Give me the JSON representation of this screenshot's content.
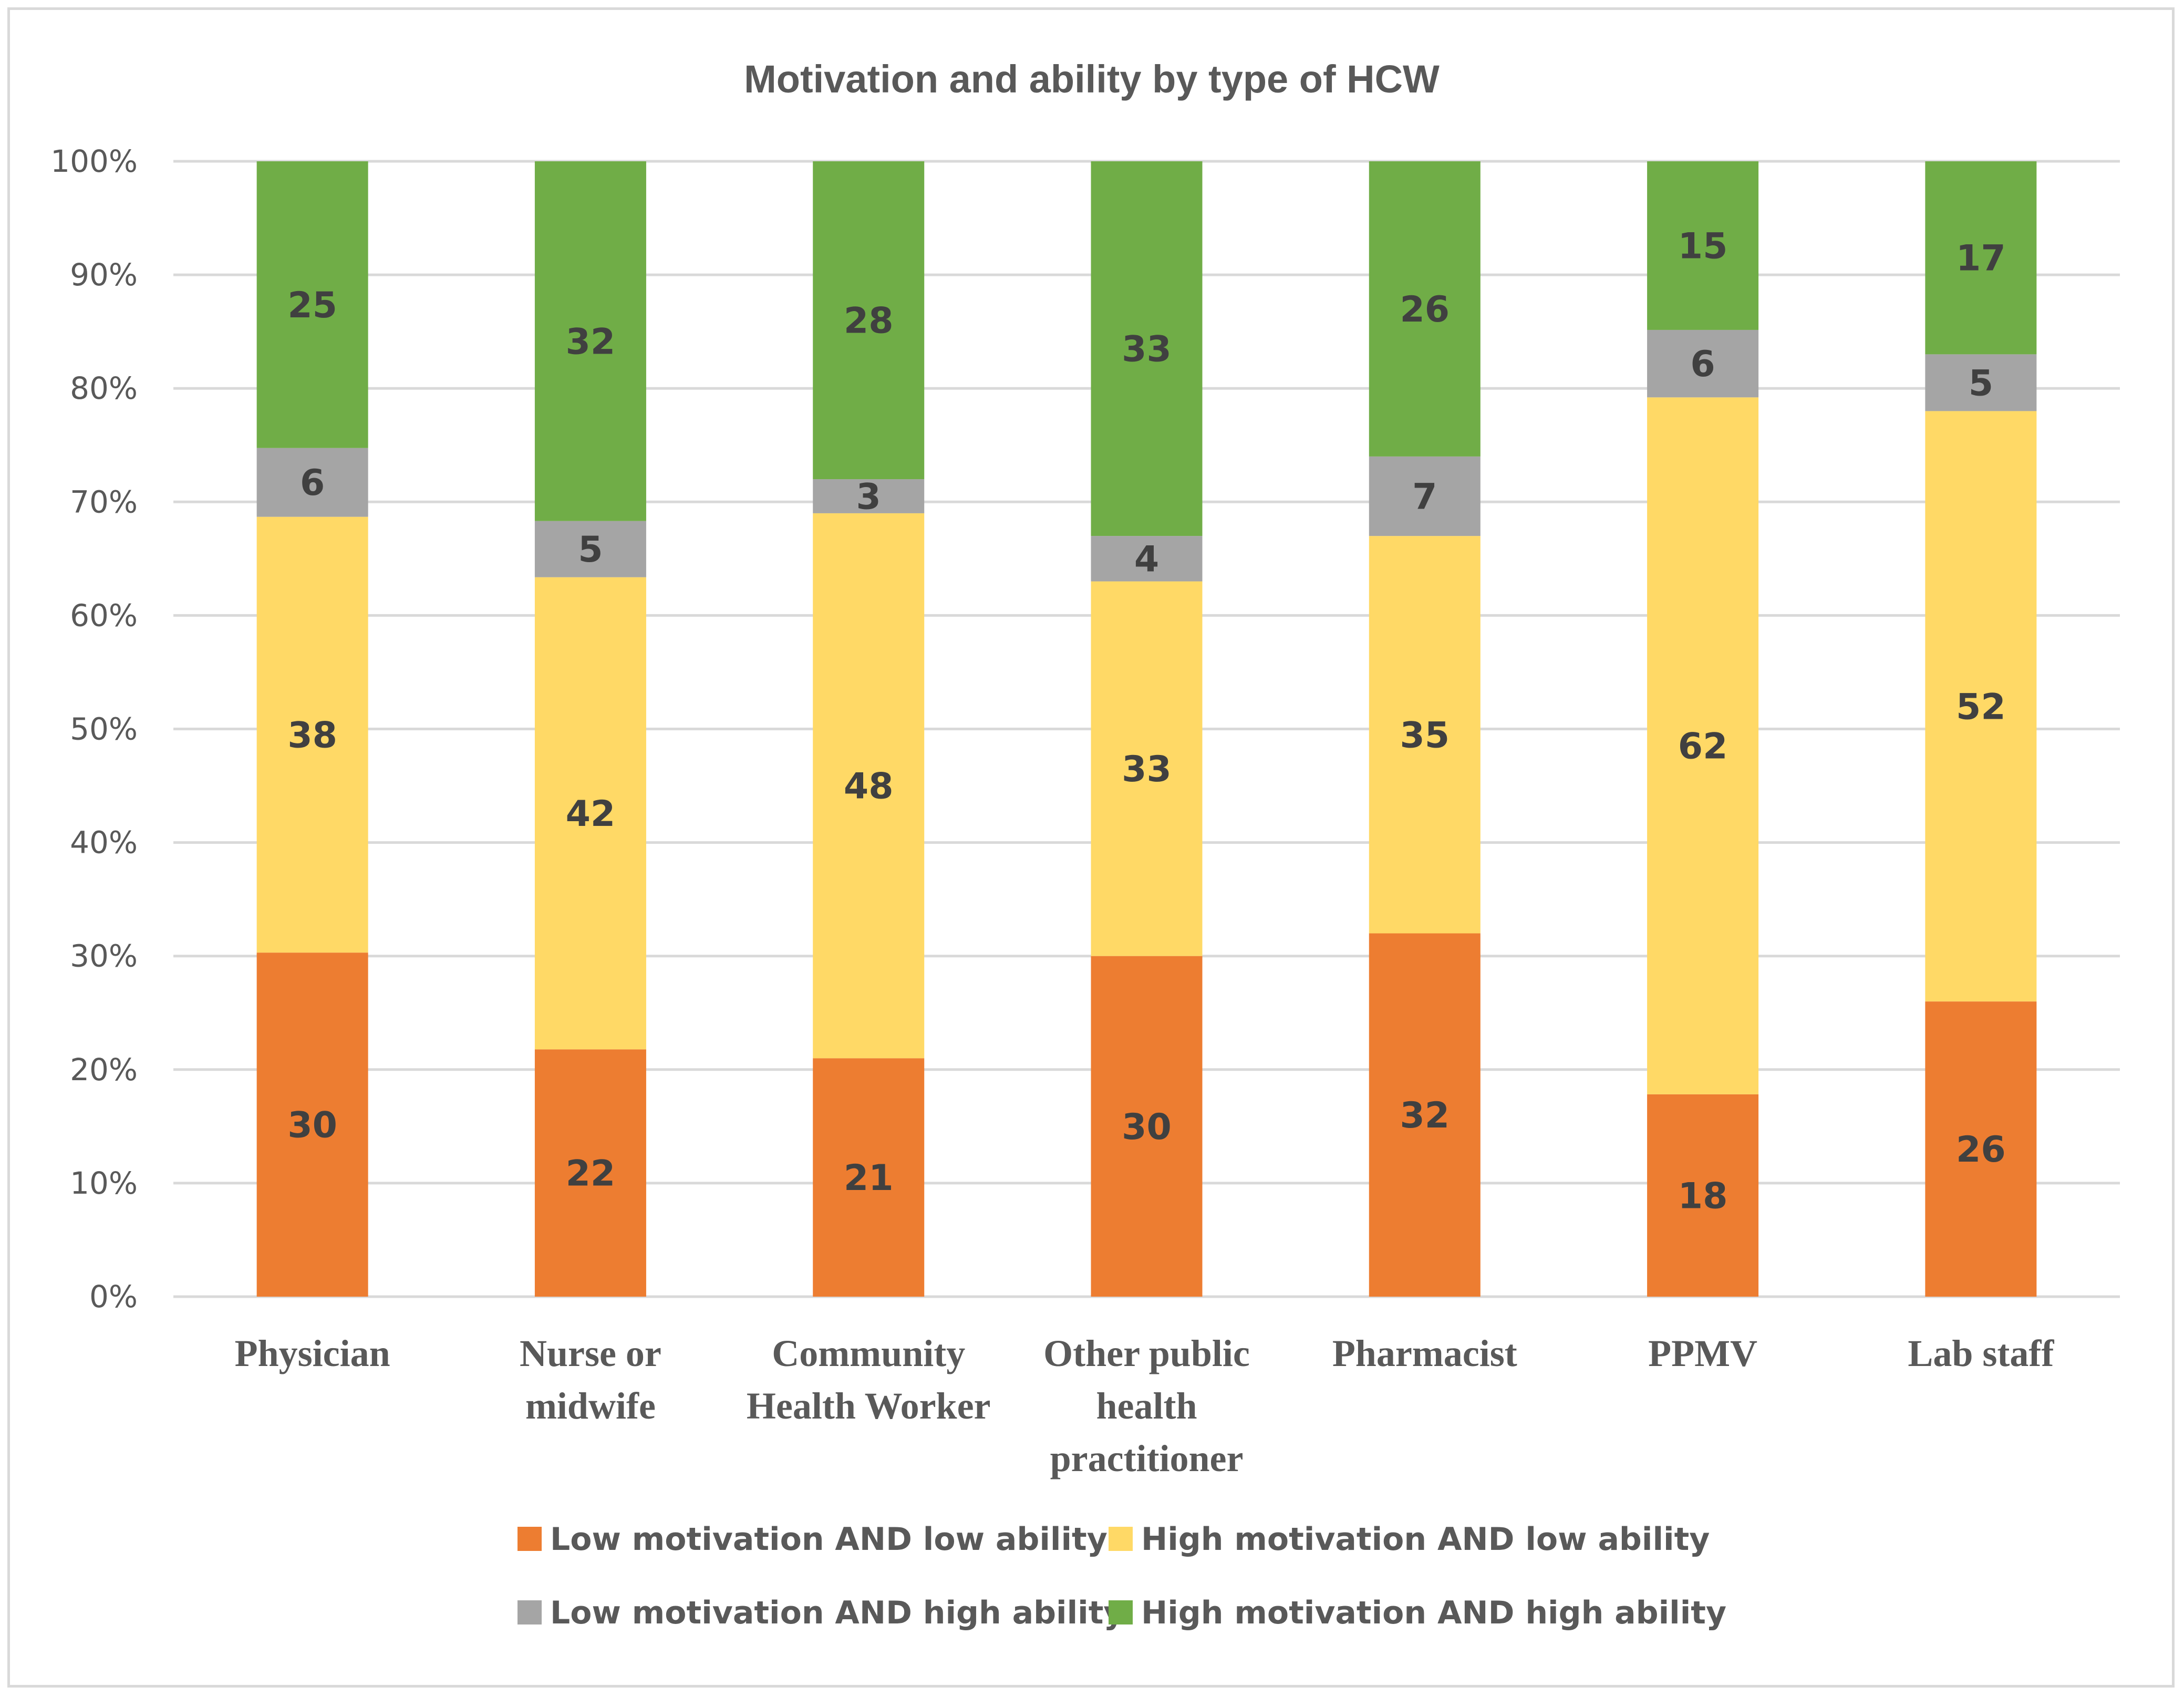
{
  "chart_data": {
    "type": "bar",
    "stacked": true,
    "percent_stacked": true,
    "title": "Motivation and ability by type of HCW",
    "xlabel": "",
    "ylabel": "",
    "ylim": [
      0,
      100
    ],
    "y_ticks": [
      "0%",
      "10%",
      "20%",
      "30%",
      "40%",
      "50%",
      "60%",
      "70%",
      "80%",
      "90%",
      "100%"
    ],
    "grid": true,
    "legend_position": "bottom",
    "categories": [
      [
        "Physician"
      ],
      [
        "Nurse or",
        "midwife"
      ],
      [
        "Community",
        "Health Worker"
      ],
      [
        "Other public",
        "health",
        "practitioner"
      ],
      [
        "Pharmacist"
      ],
      [
        "PPMV"
      ],
      [
        "Lab staff"
      ]
    ],
    "series": [
      {
        "name": "Low motivation AND low ability",
        "color": "#ed7d31",
        "values": [
          30,
          22,
          21,
          30,
          32,
          18,
          26
        ]
      },
      {
        "name": "High motivation AND low ability",
        "color": "#ffd966",
        "values": [
          38,
          42,
          48,
          33,
          35,
          62,
          52
        ]
      },
      {
        "name": "Low motivation AND high ability",
        "color": "#a5a5a5",
        "values": [
          6,
          5,
          3,
          4,
          7,
          6,
          5
        ]
      },
      {
        "name": "High motivation AND high ability",
        "color": "#70ad47",
        "values": [
          25,
          32,
          28,
          33,
          26,
          15,
          17
        ]
      }
    ]
  }
}
